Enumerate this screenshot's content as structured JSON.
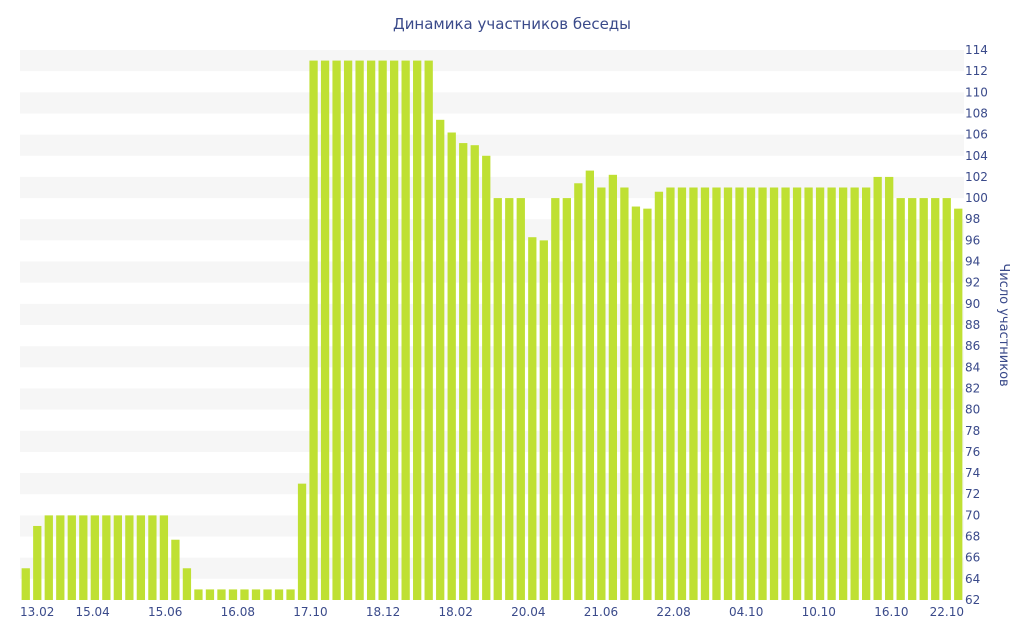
{
  "chart_data": {
    "type": "bar",
    "title": "Динамика участников беседы",
    "ylabel": "Число участников",
    "xlabel": "",
    "ylim": [
      62,
      114
    ],
    "y_axis_position": "right",
    "y_ticks": [
      62,
      64,
      66,
      68,
      70,
      72,
      74,
      76,
      78,
      80,
      82,
      84,
      86,
      88,
      90,
      92,
      94,
      96,
      98,
      100,
      102,
      104,
      106,
      108,
      110,
      112,
      114
    ],
    "x_tick_labels": [
      "13.02",
      "15.04",
      "15.06",
      "16.08",
      "17.10",
      "18.12",
      "18.02",
      "20.04",
      "21.06",
      "22.08",
      "04.10",
      "10.10",
      "16.10",
      "22.10"
    ],
    "grid": "alternating horizontal bands",
    "colors": {
      "bar": "#bfe033",
      "band": "#f6f6f6",
      "text": "#3a4a8a"
    },
    "values": [
      65,
      69,
      70,
      70,
      70,
      70,
      70,
      70,
      70,
      70,
      70,
      70,
      70,
      67.7,
      65,
      63,
      63,
      63,
      63,
      63,
      63,
      63,
      63,
      63,
      73,
      113,
      113,
      113,
      113,
      113,
      113,
      113,
      113,
      113,
      113,
      113,
      107.4,
      106.2,
      105.2,
      105,
      104,
      100,
      100,
      100,
      96.3,
      96,
      100,
      100,
      101.4,
      102.6,
      101,
      102.2,
      101,
      99.2,
      99,
      100.6,
      101,
      101,
      101,
      101,
      101,
      101,
      101,
      101,
      101,
      101,
      101,
      101,
      101,
      101,
      101,
      101,
      101,
      101,
      102,
      102,
      100,
      100,
      100,
      100,
      100,
      99
    ]
  }
}
